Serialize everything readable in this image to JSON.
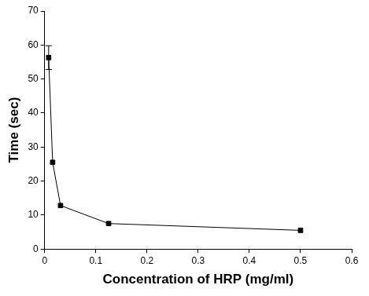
{
  "chart_data": {
    "type": "line",
    "x_label": "Concentration of HRP (mg/ml)",
    "y_label": "Time (sec)",
    "x": [
      0.0078,
      0.0156,
      0.031,
      0.125,
      0.5
    ],
    "values": [
      56.3,
      25.5,
      12.8,
      7.5,
      5.5
    ],
    "errors": [
      3.5,
      null,
      null,
      null,
      null
    ],
    "color": "#000000",
    "marker": "square",
    "line_style": "solid",
    "xlim": [
      0,
      0.6
    ],
    "xticks": [
      0,
      0.1,
      0.2,
      0.3,
      0.4,
      0.5,
      0.6
    ],
    "ylim": [
      0,
      70
    ],
    "yticks": [
      0,
      10,
      20,
      30,
      40,
      50,
      60,
      70
    ],
    "grid": false
  }
}
